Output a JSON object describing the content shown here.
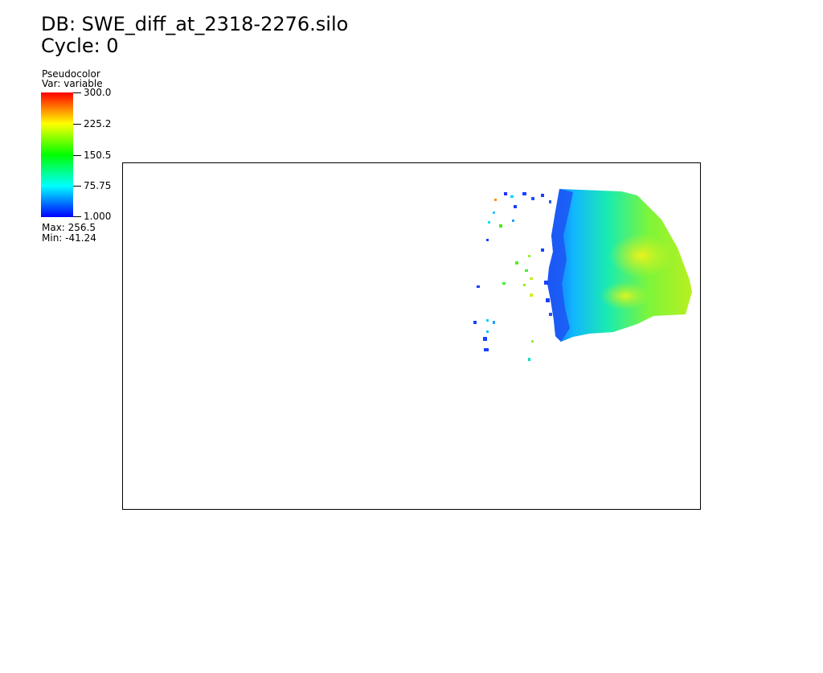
{
  "header": {
    "db_line": "DB: SWE_diff_at_2318-2276.silo",
    "cycle_line": "Cycle: 0"
  },
  "legend": {
    "plot_type": "Pseudocolor",
    "var_line": "Var: variable",
    "ticks": [
      "300.0",
      "225.2",
      "150.5",
      "75.75",
      "1.000"
    ],
    "max_line": "Max:  256.5",
    "min_line": "Min: -41.24",
    "colors": [
      "#0000ff",
      "#00ffff",
      "#00ff00",
      "#ffff00",
      "#ff0000"
    ]
  }
}
